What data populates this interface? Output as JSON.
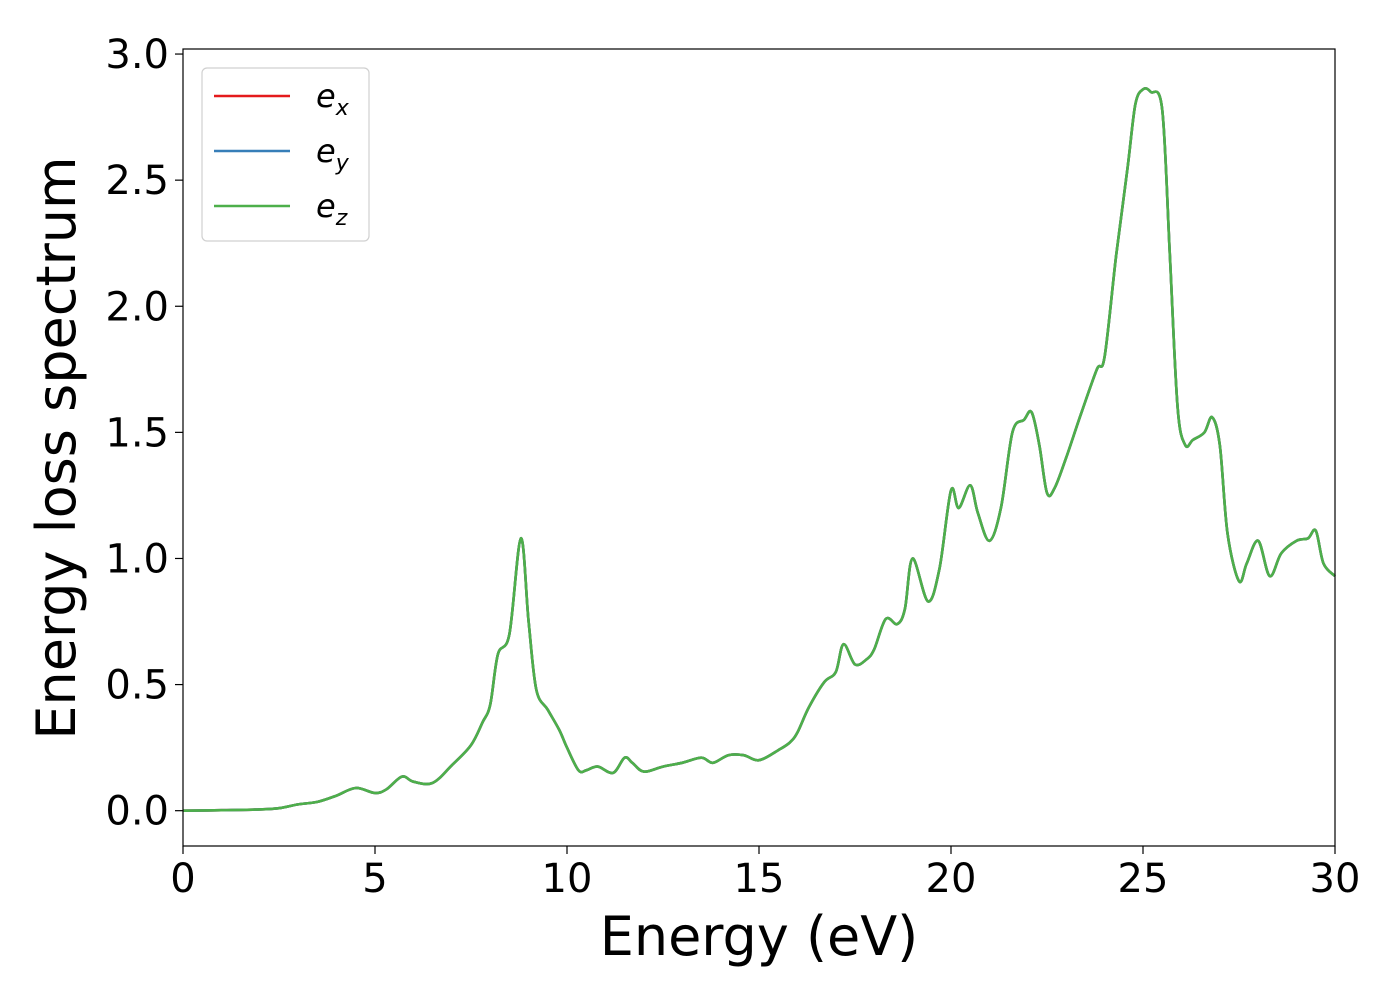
{
  "chart_data": {
    "type": "line",
    "xlabel": "Energy (eV)",
    "ylabel": "Energy loss spectrum",
    "xlim": [
      0,
      30
    ],
    "ylim": [
      -0.14,
      3.02
    ],
    "x_ticks": [
      "0",
      "5",
      "10",
      "15",
      "20",
      "25",
      "30"
    ],
    "y_ticks": [
      "0.0",
      "0.5",
      "1.0",
      "1.5",
      "2.0",
      "2.5",
      "3.0"
    ],
    "grid": false,
    "legend_placement": "top-left",
    "legend": [
      {
        "base": "e",
        "sub": "x",
        "color": "#e41a1c"
      },
      {
        "base": "e",
        "sub": "y",
        "color": "#377eb8"
      },
      {
        "base": "e",
        "sub": "z",
        "color": "#4daf4a"
      }
    ],
    "x": [
      0,
      1,
      2,
      2.5,
      3,
      3.5,
      4,
      4.5,
      5,
      5.3,
      5.7,
      6,
      6.5,
      7,
      7.5,
      7.8,
      8.0,
      8.2,
      8.5,
      8.8,
      9.0,
      9.2,
      9.5,
      9.8,
      10.0,
      10.3,
      10.5,
      10.8,
      11.2,
      11.5,
      11.7,
      12.0,
      12.5,
      13.0,
      13.5,
      13.8,
      14.2,
      14.6,
      15.0,
      15.5,
      15.8,
      16.0,
      16.3,
      16.7,
      17.0,
      17.2,
      17.5,
      17.8,
      18.0,
      18.3,
      18.6,
      18.8,
      19.0,
      19.4,
      19.7,
      20.0,
      20.2,
      20.5,
      20.7,
      21.0,
      21.3,
      21.6,
      21.9,
      22.1,
      22.3,
      22.5,
      22.7,
      23.0,
      23.4,
      23.8,
      24.0,
      24.3,
      24.6,
      24.8,
      25.0,
      25.2,
      25.5,
      25.7,
      25.9,
      26.1,
      26.3,
      26.6,
      26.8,
      27.0,
      27.2,
      27.5,
      27.7,
      28.0,
      28.3,
      28.6,
      29.0,
      29.3,
      29.5,
      29.7,
      30.0
    ],
    "series": [
      {
        "name": "e_x",
        "color": "#e41a1c",
        "values": [
          0.0,
          0.002,
          0.005,
          0.01,
          0.025,
          0.035,
          0.06,
          0.09,
          0.07,
          0.085,
          0.135,
          0.115,
          0.11,
          0.18,
          0.26,
          0.35,
          0.42,
          0.62,
          0.7,
          1.08,
          0.75,
          0.48,
          0.4,
          0.32,
          0.25,
          0.16,
          0.16,
          0.175,
          0.15,
          0.21,
          0.19,
          0.155,
          0.175,
          0.19,
          0.21,
          0.19,
          0.22,
          0.22,
          0.2,
          0.24,
          0.27,
          0.31,
          0.41,
          0.51,
          0.55,
          0.66,
          0.58,
          0.6,
          0.64,
          0.76,
          0.74,
          0.8,
          1.0,
          0.83,
          0.96,
          1.27,
          1.2,
          1.29,
          1.18,
          1.07,
          1.2,
          1.5,
          1.55,
          1.58,
          1.45,
          1.26,
          1.28,
          1.4,
          1.58,
          1.75,
          1.8,
          2.2,
          2.55,
          2.8,
          2.86,
          2.85,
          2.78,
          2.2,
          1.6,
          1.45,
          1.47,
          1.5,
          1.56,
          1.45,
          1.1,
          0.91,
          0.98,
          1.07,
          0.93,
          1.02,
          1.07,
          1.08,
          1.11,
          0.98,
          0.93
        ]
      },
      {
        "name": "e_y",
        "color": "#377eb8",
        "values": [
          0.0,
          0.002,
          0.005,
          0.01,
          0.025,
          0.035,
          0.06,
          0.09,
          0.07,
          0.085,
          0.135,
          0.115,
          0.11,
          0.18,
          0.26,
          0.35,
          0.42,
          0.62,
          0.7,
          1.08,
          0.75,
          0.48,
          0.4,
          0.32,
          0.25,
          0.16,
          0.16,
          0.175,
          0.15,
          0.21,
          0.19,
          0.155,
          0.175,
          0.19,
          0.21,
          0.19,
          0.22,
          0.22,
          0.2,
          0.24,
          0.27,
          0.31,
          0.41,
          0.51,
          0.55,
          0.66,
          0.58,
          0.6,
          0.64,
          0.76,
          0.74,
          0.8,
          1.0,
          0.83,
          0.96,
          1.27,
          1.2,
          1.29,
          1.18,
          1.07,
          1.2,
          1.5,
          1.55,
          1.58,
          1.45,
          1.26,
          1.28,
          1.4,
          1.58,
          1.75,
          1.8,
          2.2,
          2.55,
          2.8,
          2.86,
          2.85,
          2.78,
          2.2,
          1.6,
          1.45,
          1.47,
          1.5,
          1.56,
          1.45,
          1.1,
          0.91,
          0.98,
          1.07,
          0.93,
          1.02,
          1.07,
          1.08,
          1.11,
          0.98,
          0.93
        ]
      },
      {
        "name": "e_z",
        "color": "#4daf4a",
        "values": [
          0.0,
          0.002,
          0.005,
          0.01,
          0.025,
          0.035,
          0.06,
          0.09,
          0.07,
          0.085,
          0.135,
          0.115,
          0.11,
          0.18,
          0.26,
          0.35,
          0.42,
          0.62,
          0.7,
          1.08,
          0.75,
          0.48,
          0.4,
          0.32,
          0.25,
          0.16,
          0.16,
          0.175,
          0.15,
          0.21,
          0.19,
          0.155,
          0.175,
          0.19,
          0.21,
          0.19,
          0.22,
          0.22,
          0.2,
          0.24,
          0.27,
          0.31,
          0.41,
          0.51,
          0.55,
          0.66,
          0.58,
          0.6,
          0.64,
          0.76,
          0.74,
          0.8,
          1.0,
          0.83,
          0.96,
          1.27,
          1.2,
          1.29,
          1.18,
          1.07,
          1.2,
          1.5,
          1.55,
          1.58,
          1.45,
          1.26,
          1.28,
          1.4,
          1.58,
          1.75,
          1.8,
          2.2,
          2.55,
          2.8,
          2.86,
          2.85,
          2.78,
          2.2,
          1.6,
          1.45,
          1.47,
          1.5,
          1.56,
          1.45,
          1.1,
          0.91,
          0.98,
          1.07,
          0.93,
          1.02,
          1.07,
          1.08,
          1.11,
          0.98,
          0.93
        ]
      }
    ]
  }
}
